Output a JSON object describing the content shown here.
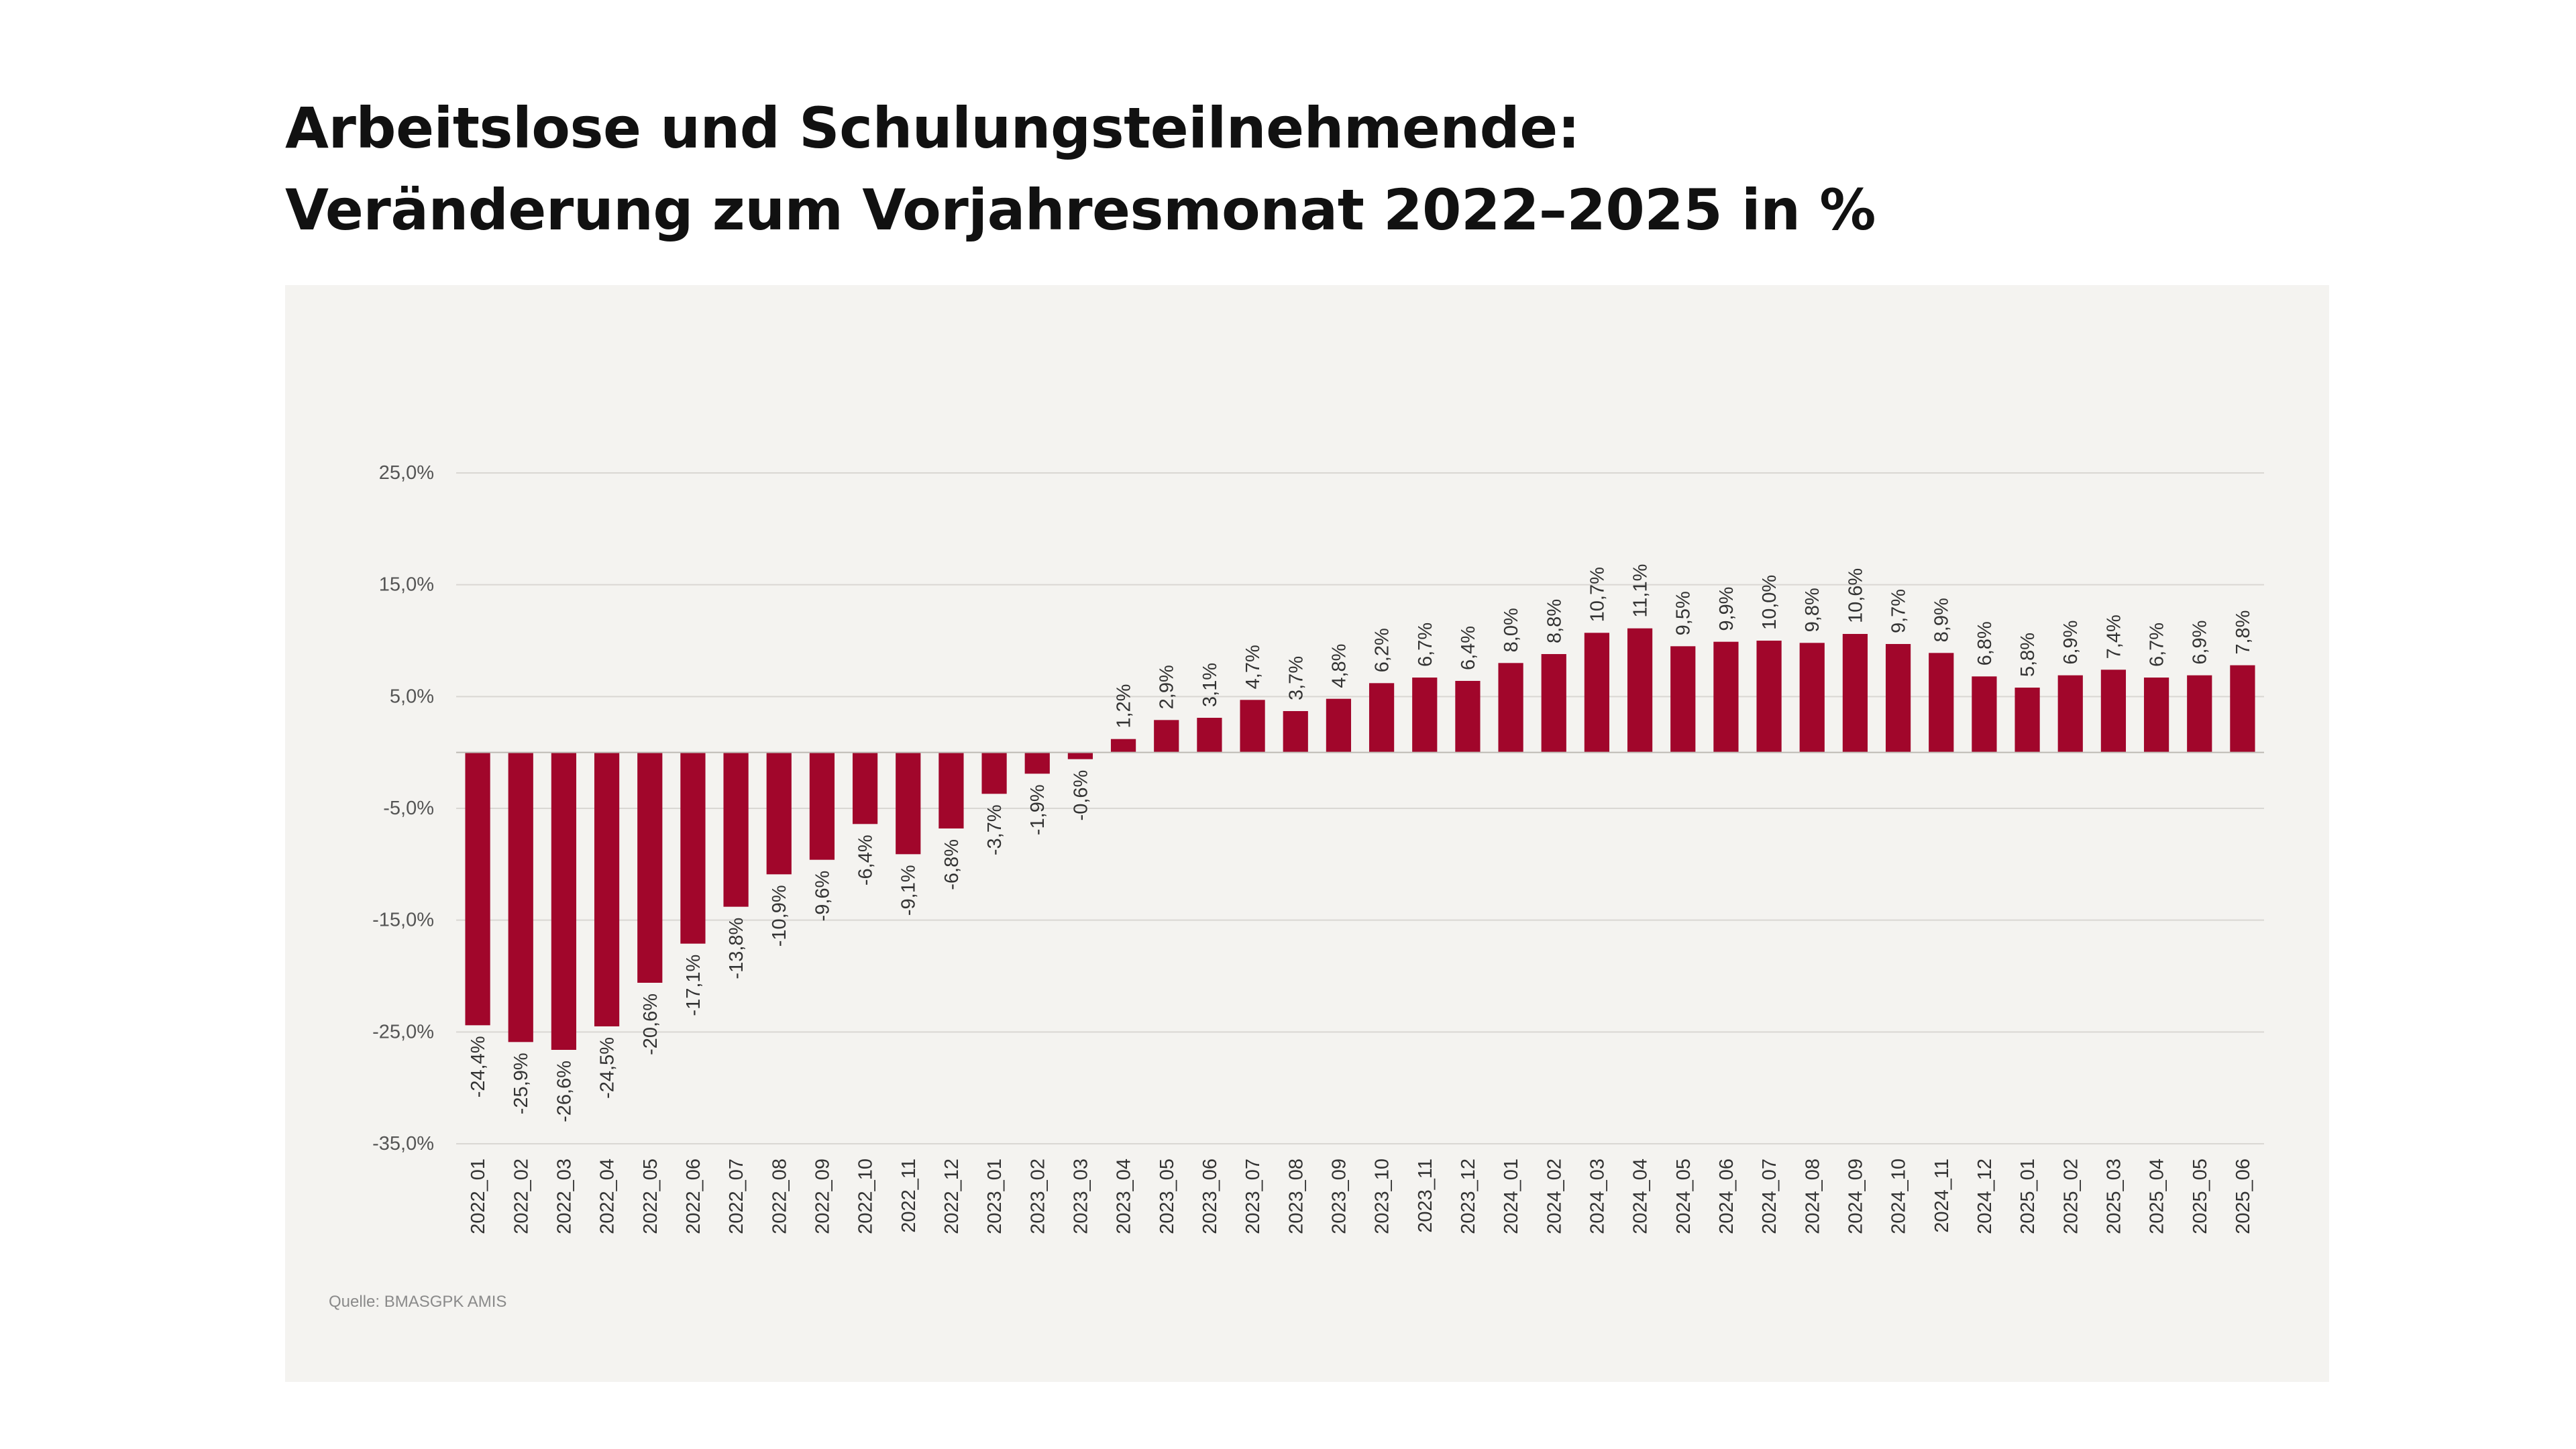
{
  "title": {
    "line1": "Arbeitslose und Schulungsteilnehmende:",
    "line2": "Veränderung zum Vorjahresmonat 2022–2025 in %"
  },
  "source": "Quelle: BMASGPK AMIS",
  "colors": {
    "bar": "#a1062b",
    "panel": "#f4f3f0",
    "grid": "#d9d7d3",
    "text": "#333333",
    "tick": "#555555"
  },
  "chart_data": {
    "type": "bar",
    "title": "Arbeitslose und Schulungsteilnehmende: Veränderung zum Vorjahresmonat 2022–2025 in %",
    "xlabel": "",
    "ylabel": "",
    "ylim": [
      -35,
      25
    ],
    "yticks": [
      25,
      15,
      5,
      -5,
      -15,
      -25,
      -35
    ],
    "ytick_labels": [
      "25,0%",
      "15,0%",
      "5,0%",
      "-5,0%",
      "-15,0%",
      "-25,0%",
      "-35,0%"
    ],
    "grid": true,
    "categories": [
      "2022_01",
      "2022_02",
      "2022_03",
      "2022_04",
      "2022_05",
      "2022_06",
      "2022_07",
      "2022_08",
      "2022_09",
      "2022_10",
      "2022_11",
      "2022_12",
      "2023_01",
      "2023_02",
      "2023_03",
      "2023_04",
      "2023_05",
      "2023_06",
      "2023_07",
      "2023_08",
      "2023_09",
      "2023_10",
      "2023_11",
      "2023_12",
      "2024_01",
      "2024_02",
      "2024_03",
      "2024_04",
      "2024_05",
      "2024_06",
      "2024_07",
      "2024_08",
      "2024_09",
      "2024_10",
      "2024_11",
      "2024_12",
      "2025_01",
      "2025_02",
      "2025_03",
      "2025_04",
      "2025_05",
      "2025_06"
    ],
    "values": [
      -24.4,
      -25.9,
      -26.6,
      -24.5,
      -20.6,
      -17.1,
      -13.8,
      -10.9,
      -9.6,
      -6.4,
      -9.1,
      -6.8,
      -3.7,
      -1.9,
      -0.6,
      1.2,
      2.9,
      3.1,
      4.7,
      3.7,
      4.8,
      6.2,
      6.7,
      6.4,
      8.0,
      8.8,
      10.7,
      11.1,
      9.5,
      9.9,
      10.0,
      9.8,
      10.6,
      9.7,
      8.9,
      6.8,
      5.8,
      6.9,
      7.4,
      6.7,
      6.9,
      7.8
    ],
    "data_labels": [
      "-24,4%",
      "-25,9%",
      "-26,6%",
      "-24,5%",
      "-20,6%",
      "-17,1%",
      "-13,8%",
      "-10,9%",
      "-9,6%",
      "-6,4%",
      "-9,1%",
      "-6,8%",
      "-3,7%",
      "-1,9%",
      "-0,6%",
      "1,2%",
      "2,9%",
      "3,1%",
      "4,7%",
      "3,7%",
      "4,8%",
      "6,2%",
      "6,7%",
      "6,4%",
      "8,0%",
      "8,8%",
      "10,7%",
      "11,1%",
      "9,5%",
      "9,9%",
      "10,0%",
      "9,8%",
      "10,6%",
      "9,7%",
      "8,9%",
      "6,8%",
      "5,8%",
      "6,9%",
      "7,4%",
      "6,7%",
      "6,9%",
      "7,8%"
    ]
  }
}
